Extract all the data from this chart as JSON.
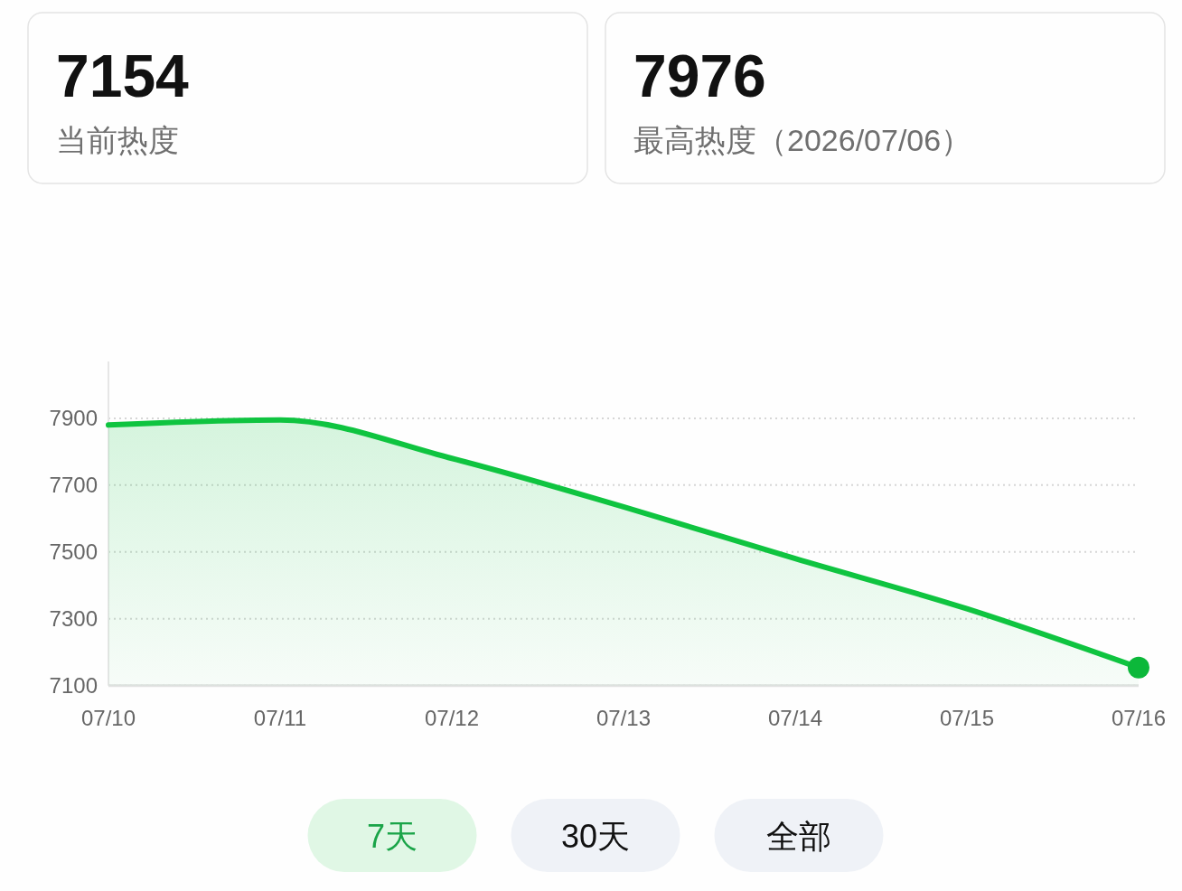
{
  "chart_data": [
    {
      "type": "other",
      "title": "7154",
      "subtitle": "当前热度"
    },
    {
      "type": "other",
      "title": "7976",
      "subtitle": "最高热度（2026/07/06）"
    },
    {
      "type": "area",
      "categories": [
        "07/10",
        "07/11",
        "07/12",
        "07/13",
        "07/14",
        "07/15",
        "07/16"
      ],
      "series": [
        {
          "type": "area",
          "color": "#0fc440",
          "values": [
            7880,
            7895,
            7780,
            7635,
            7480,
            7330,
            7154
          ]
        },
        {
          "type": "scatter",
          "color": "#0cb83a",
          "x": [
            "07/16"
          ],
          "values": [
            7154
          ],
          "marker": "circle"
        }
      ],
      "ylim": [
        7100,
        8070
      ],
      "yticks": [
        7100,
        7300,
        7500,
        7700,
        7900
      ],
      "grid": "y",
      "annotations": [
        "7天",
        "30天",
        "全部"
      ]
    }
  ]
}
